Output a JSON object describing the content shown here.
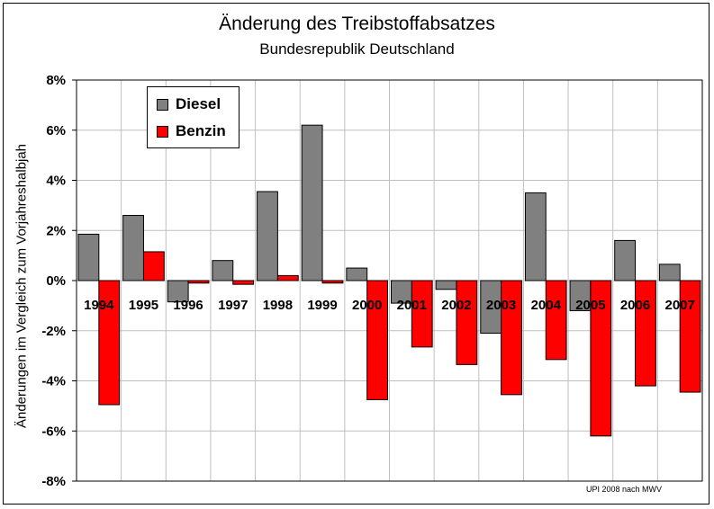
{
  "chart_data": {
    "type": "bar",
    "title": "Änderung des Treibstoffabsatzes",
    "subtitle": "Bundesrepublik Deutschland",
    "ylabel": "Änderungen im Vergleich zum Vorjahreshalbjah",
    "xlabel": "",
    "ylim": [
      -8,
      8
    ],
    "yticks": [
      "8%",
      "6%",
      "4%",
      "2%",
      "0%",
      "-2%",
      "-4%",
      "-6%",
      "-8%"
    ],
    "categories": [
      "1994",
      "1995",
      "1996",
      "1997",
      "1998",
      "1999",
      "2000",
      "2001",
      "2002",
      "2003",
      "2004",
      "2005",
      "2006",
      "2007"
    ],
    "series": [
      {
        "name": "Diesel",
        "color": "#808080",
        "values": [
          1.85,
          2.6,
          -0.85,
          0.8,
          3.55,
          6.2,
          0.5,
          -0.9,
          -0.35,
          -2.1,
          3.5,
          -1.2,
          1.6,
          0.65
        ]
      },
      {
        "name": "Benzin",
        "color": "#ff0000",
        "values": [
          -4.95,
          1.15,
          -0.1,
          -0.15,
          0.2,
          -0.1,
          -4.75,
          -2.65,
          -3.35,
          -4.55,
          -3.15,
          -6.2,
          -4.2,
          -4.45
        ]
      }
    ],
    "grid": true,
    "legend": "top-left",
    "source": "UPI 2008 nach MWV"
  }
}
